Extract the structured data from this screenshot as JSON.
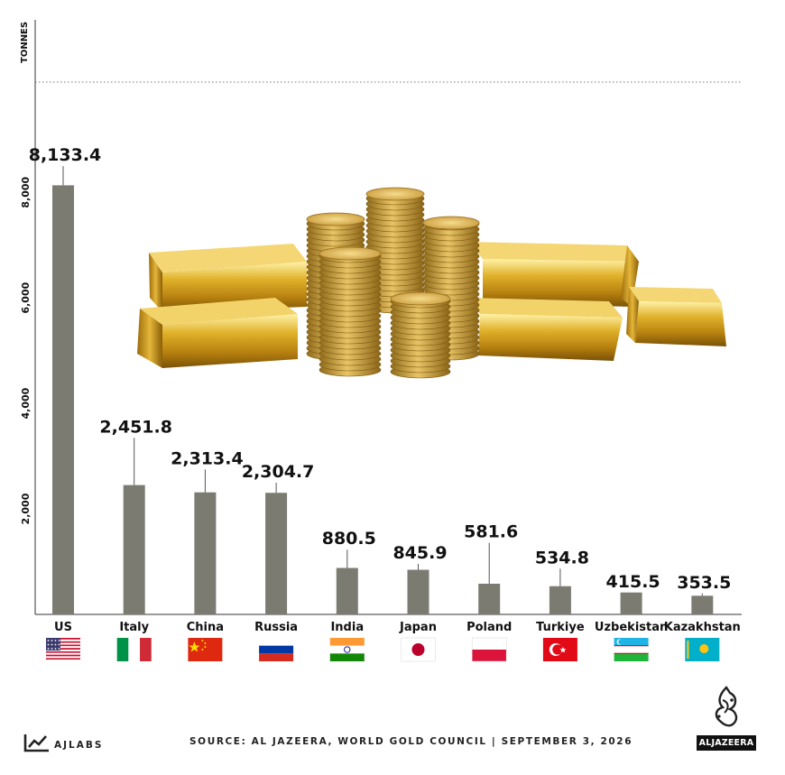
{
  "chart_data": {
    "type": "bar",
    "ylabel": "TONNES",
    "ylim": [
      0,
      10000
    ],
    "yticks": [
      "2,000",
      "4,000",
      "6,000",
      "8,000"
    ],
    "categories": [
      "US",
      "Italy",
      "China",
      "Russia",
      "India",
      "Japan",
      "Poland",
      "Turkiye",
      "Uzbekistan",
      "Kazakhstan"
    ],
    "values": [
      8133.4,
      2451.8,
      2313.4,
      2304.7,
      880.5,
      845.9,
      581.6,
      534.8,
      415.5,
      353.5
    ],
    "data_labels": [
      "8,133.4",
      "2,451.8",
      "2,313.4",
      "2,304.7",
      "880.5",
      "845.9",
      "581.6",
      "534.8",
      "415.5",
      "353.5"
    ],
    "label_values": [
      8600,
      3450,
      2850,
      2600,
      1330,
      1060,
      1460,
      970,
      510,
      500
    ],
    "bar_color": "#7c7b72",
    "grid": false
  },
  "footer": {
    "source": "SOURCE: AL JAZEERA, WORLD GOLD COUNCIL   |   SEPTEMBER 3, 2026",
    "brand_left": "AJLABS",
    "brand_right": "ALJAZEERA"
  },
  "icons": {
    "flags": [
      "us-flag-icon",
      "italy-flag-icon",
      "china-flag-icon",
      "russia-flag-icon",
      "india-flag-icon",
      "japan-flag-icon",
      "poland-flag-icon",
      "turkiye-flag-icon",
      "uzbekistan-flag-icon",
      "kazakhstan-flag-icon"
    ],
    "decor": "gold-bars-and-coins-icon"
  }
}
